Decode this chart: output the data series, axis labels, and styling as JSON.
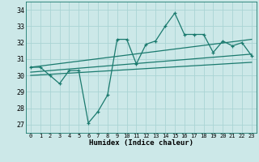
{
  "xlabel": "Humidex (Indice chaleur)",
  "ylabel": "",
  "bg_color": "#cce8e8",
  "grid_color": "#aad4d4",
  "line_color": "#1a7a6e",
  "xlim": [
    -0.5,
    23.5
  ],
  "ylim": [
    26.5,
    34.5
  ],
  "yticks": [
    27,
    28,
    29,
    30,
    31,
    32,
    33,
    34
  ],
  "xticks": [
    0,
    1,
    2,
    3,
    4,
    5,
    6,
    7,
    8,
    9,
    10,
    11,
    12,
    13,
    14,
    15,
    16,
    17,
    18,
    19,
    20,
    21,
    22,
    23
  ],
  "main_x": [
    0,
    1,
    2,
    3,
    4,
    5,
    6,
    7,
    8,
    9,
    10,
    11,
    12,
    13,
    14,
    15,
    16,
    17,
    18,
    19,
    20,
    21,
    22,
    23
  ],
  "main_y": [
    30.5,
    30.5,
    30.0,
    29.5,
    30.3,
    30.3,
    27.1,
    27.8,
    28.8,
    32.2,
    32.2,
    30.7,
    31.9,
    32.1,
    33.0,
    33.8,
    32.5,
    32.5,
    32.5,
    31.4,
    32.1,
    31.8,
    32.0,
    31.2
  ],
  "trend1_x": [
    0,
    23
  ],
  "trend1_y": [
    30.5,
    32.2
  ],
  "trend2_x": [
    0,
    23
  ],
  "trend2_y": [
    30.2,
    31.3
  ],
  "trend3_x": [
    0,
    23
  ],
  "trend3_y": [
    30.0,
    30.8
  ]
}
